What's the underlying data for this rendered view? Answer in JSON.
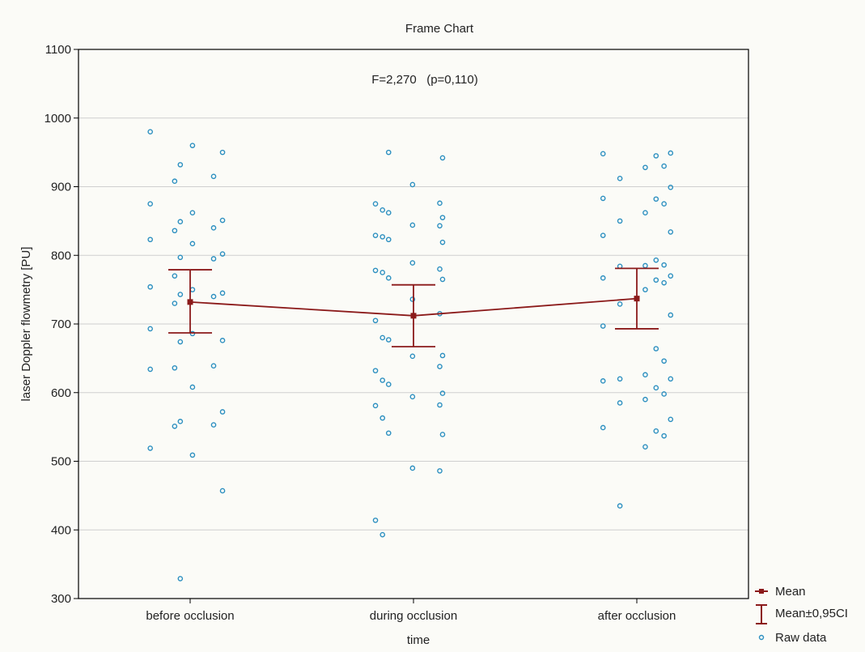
{
  "chart_data": {
    "type": "scatter",
    "title": "Frame Chart",
    "annotation": "F=2,270   (p=0,110)",
    "xlabel": "time",
    "ylabel": "laser Doppler flowmetry [PU]",
    "ylim": [
      300,
      1100
    ],
    "yticks": [
      300,
      400,
      500,
      600,
      700,
      800,
      900,
      1000,
      1100
    ],
    "categories": [
      "before occlusion",
      "during occlusion",
      "after occlusion"
    ],
    "grid": true,
    "legend_position": "bottom-right",
    "legend": {
      "mean": "Mean",
      "ci": "Mean±0,95CI",
      "raw": "Raw data"
    },
    "colors": {
      "mean": "#8b1a1a",
      "raw": "#2b8fc0",
      "grid": "#cfcfcf"
    },
    "mean": [
      732,
      712,
      737
    ],
    "ci_upper": [
      779,
      757,
      781
    ],
    "ci_lower": [
      687,
      667,
      693
    ],
    "raw_data": [
      [
        980,
        960,
        950,
        932,
        915,
        908,
        875,
        862,
        851,
        849,
        840,
        836,
        823,
        817,
        802,
        797,
        795,
        770,
        754,
        750,
        745,
        743,
        740,
        730,
        693,
        686,
        676,
        674,
        639,
        636,
        634,
        608,
        572,
        558,
        553,
        551,
        519,
        509,
        457,
        329
      ],
      [
        950,
        942,
        903,
        876,
        875,
        866,
        862,
        855,
        844,
        843,
        829,
        827,
        823,
        819,
        789,
        780,
        778,
        775,
        767,
        765,
        736,
        715,
        705,
        680,
        677,
        654,
        653,
        638,
        632,
        618,
        612,
        599,
        594,
        582,
        581,
        563,
        541,
        539,
        490,
        486,
        414,
        393
      ],
      [
        949,
        948,
        945,
        930,
        928,
        912,
        899,
        883,
        882,
        875,
        862,
        850,
        834,
        829,
        793,
        786,
        785,
        784,
        770,
        767,
        764,
        760,
        750,
        729,
        713,
        697,
        664,
        646,
        626,
        620,
        620,
        617,
        607,
        598,
        590,
        585,
        561,
        549,
        544,
        537,
        521,
        435
      ]
    ]
  }
}
